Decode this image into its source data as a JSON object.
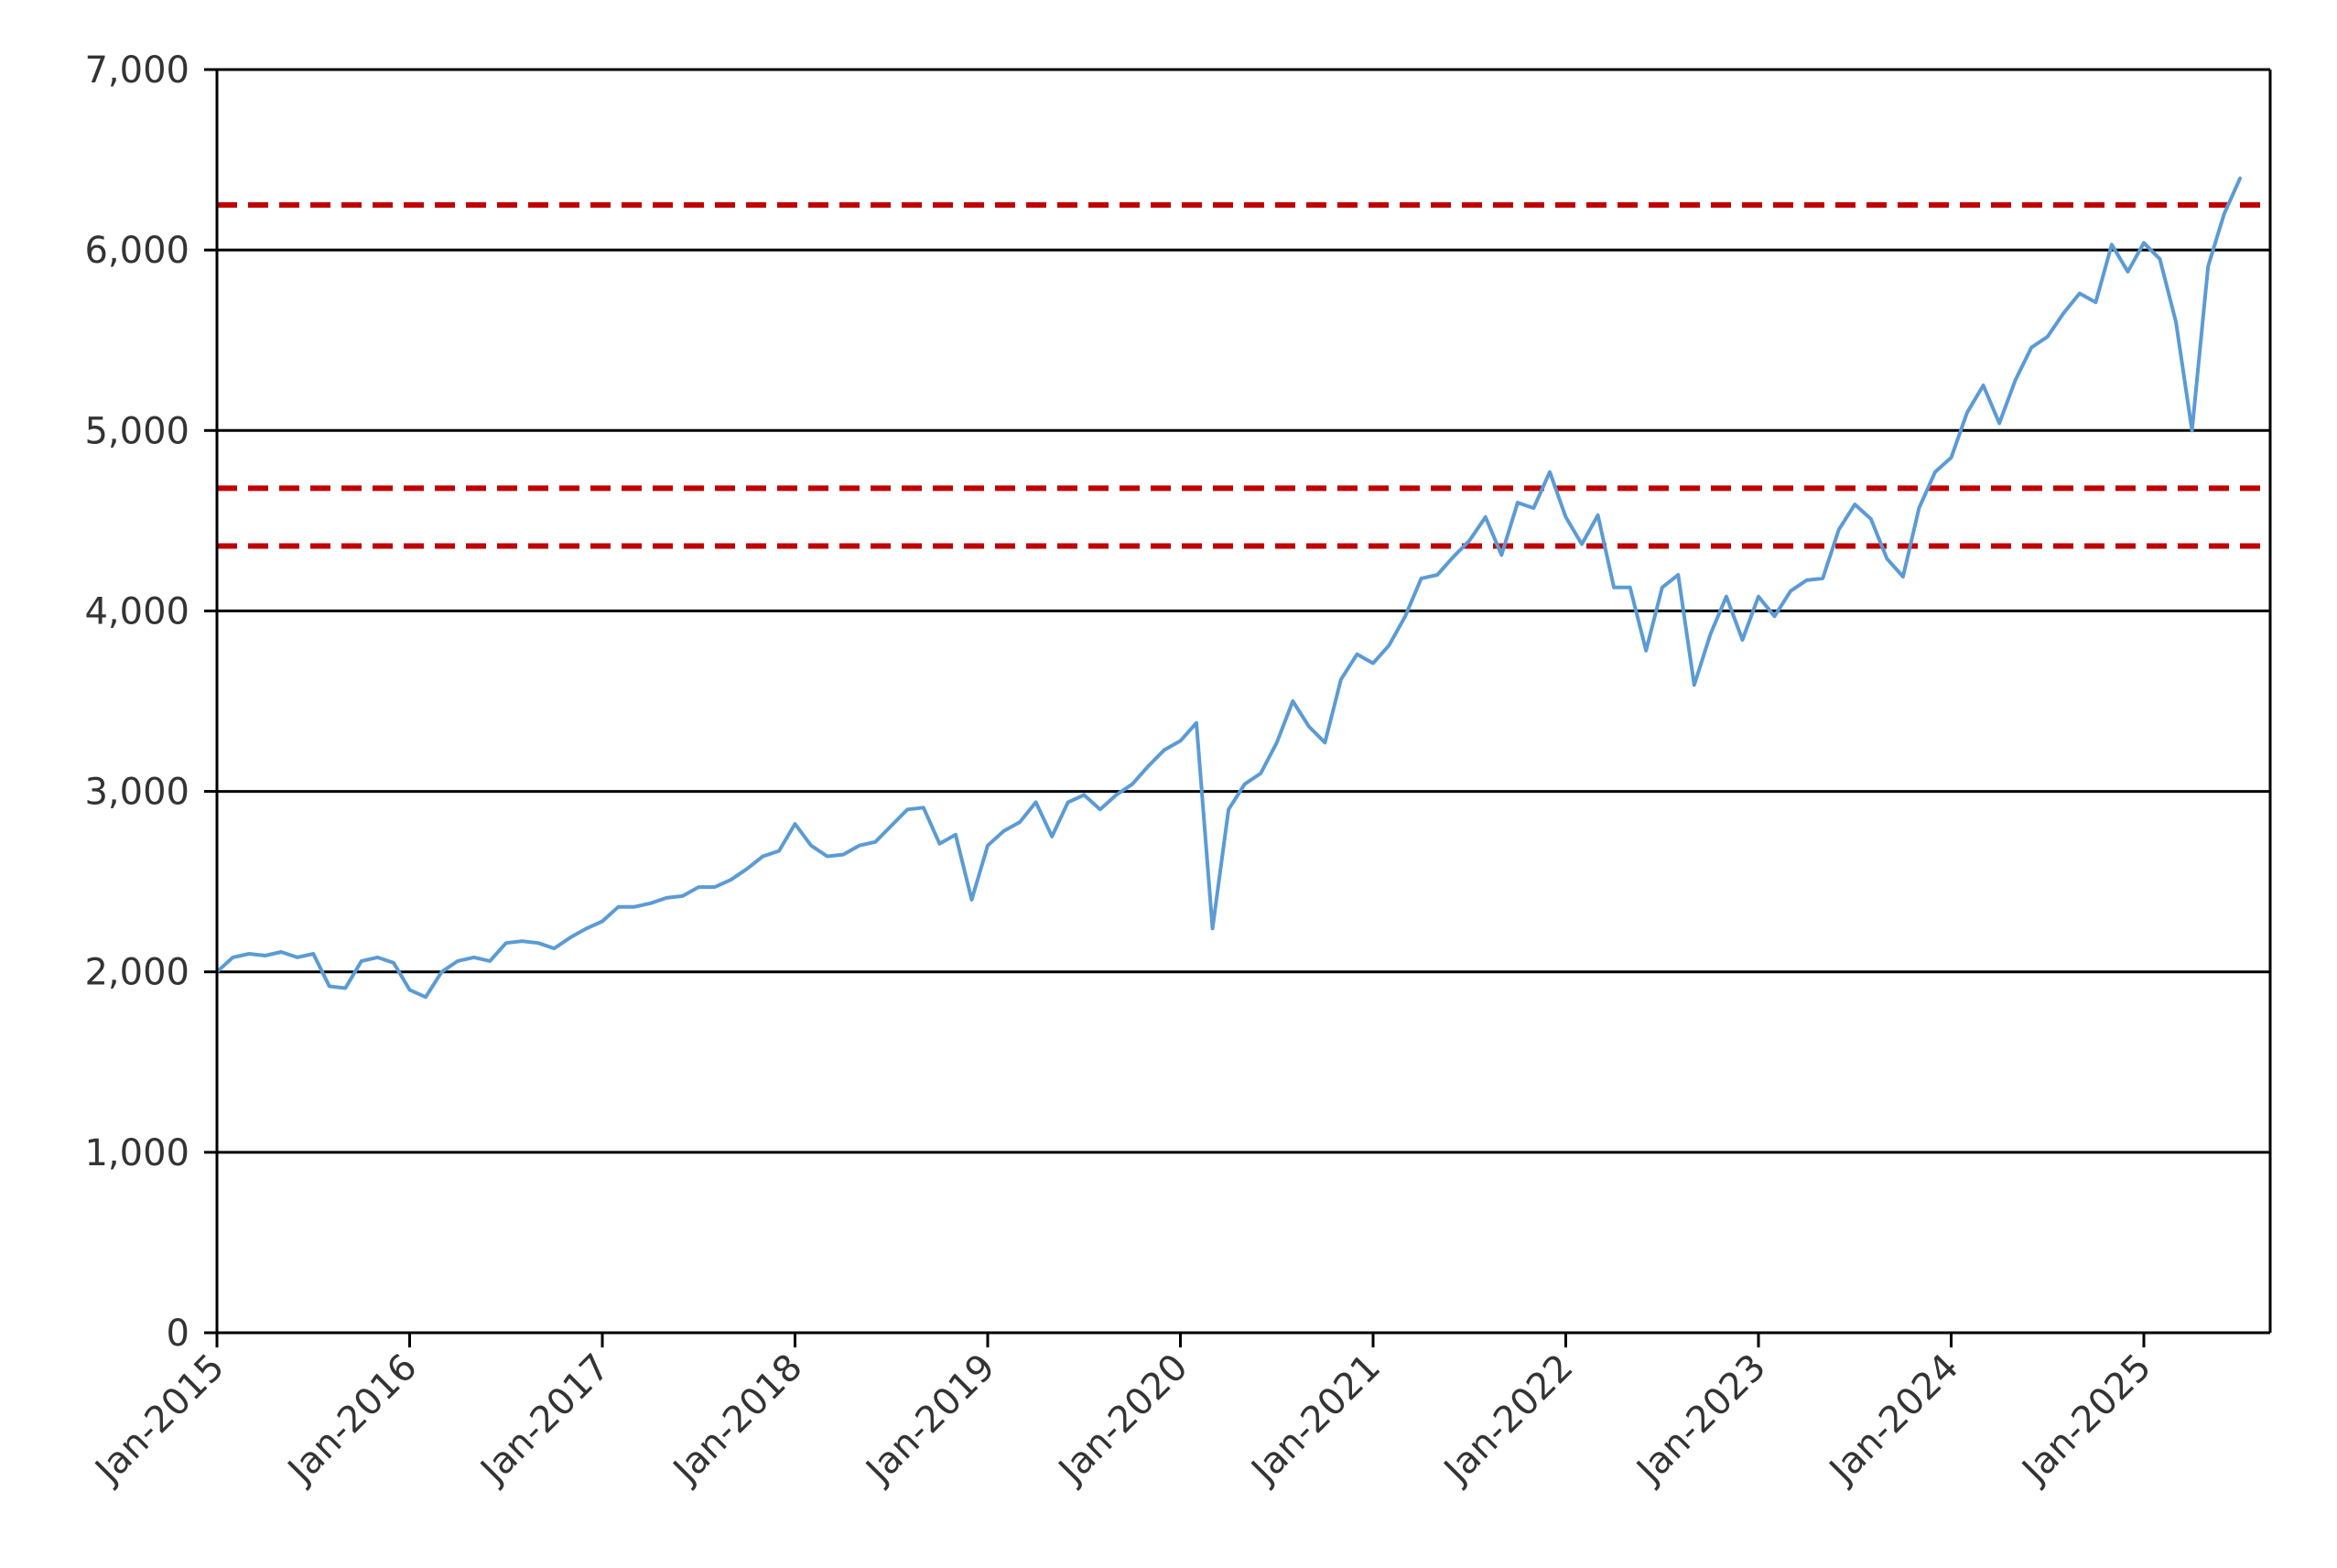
{
  "chart_data": {
    "type": "line",
    "title": "",
    "xlabel": "",
    "ylabel": "",
    "xlim": [
      "2015-01",
      "2025-07"
    ],
    "ylim": [
      0,
      7000
    ],
    "y_ticks": [
      {
        "value": 0,
        "label": "0"
      },
      {
        "value": 1000,
        "label": "1,000"
      },
      {
        "value": 2000,
        "label": "2,000"
      },
      {
        "value": 3000,
        "label": "3,000"
      },
      {
        "value": 4000,
        "label": "4,000"
      },
      {
        "value": 5000,
        "label": "5,000"
      },
      {
        "value": 6000,
        "label": "6,000"
      },
      {
        "value": 7000,
        "label": "7,000"
      }
    ],
    "x_ticks": [
      {
        "value": "2015-01",
        "label": "Jan-2015"
      },
      {
        "value": "2016-01",
        "label": "Jan-2016"
      },
      {
        "value": "2017-01",
        "label": "Jan-2017"
      },
      {
        "value": "2018-01",
        "label": "Jan-2018"
      },
      {
        "value": "2019-01",
        "label": "Jan-2019"
      },
      {
        "value": "2020-01",
        "label": "Jan-2020"
      },
      {
        "value": "2021-01",
        "label": "Jan-2021"
      },
      {
        "value": "2022-01",
        "label": "Jan-2022"
      },
      {
        "value": "2023-01",
        "label": "Jan-2023"
      },
      {
        "value": "2024-01",
        "label": "Jan-2024"
      },
      {
        "value": "2025-01",
        "label": "Jan-2025"
      }
    ],
    "grid": "horizontal",
    "legend": "none",
    "series": [
      {
        "color": "#5b9bd5",
        "points": [
          [
            "2015-01",
            2000
          ],
          [
            "2015-02",
            2080
          ],
          [
            "2015-03",
            2100
          ],
          [
            "2015-04",
            2090
          ],
          [
            "2015-05",
            2110
          ],
          [
            "2015-06",
            2080
          ],
          [
            "2015-07",
            2100
          ],
          [
            "2015-08",
            1920
          ],
          [
            "2015-09",
            1910
          ],
          [
            "2015-10",
            2060
          ],
          [
            "2015-11",
            2080
          ],
          [
            "2015-12",
            2050
          ],
          [
            "2016-01",
            1900
          ],
          [
            "2016-02",
            1860
          ],
          [
            "2016-03",
            2000
          ],
          [
            "2016-04",
            2060
          ],
          [
            "2016-05",
            2080
          ],
          [
            "2016-06",
            2060
          ],
          [
            "2016-07",
            2160
          ],
          [
            "2016-08",
            2170
          ],
          [
            "2016-09",
            2160
          ],
          [
            "2016-10",
            2130
          ],
          [
            "2016-11",
            2190
          ],
          [
            "2016-12",
            2240
          ],
          [
            "2017-01",
            2280
          ],
          [
            "2017-02",
            2360
          ],
          [
            "2017-03",
            2360
          ],
          [
            "2017-04",
            2380
          ],
          [
            "2017-05",
            2410
          ],
          [
            "2017-06",
            2420
          ],
          [
            "2017-07",
            2470
          ],
          [
            "2017-08",
            2470
          ],
          [
            "2017-09",
            2510
          ],
          [
            "2017-10",
            2570
          ],
          [
            "2017-11",
            2640
          ],
          [
            "2017-12",
            2670
          ],
          [
            "2018-01",
            2820
          ],
          [
            "2018-02",
            2700
          ],
          [
            "2018-03",
            2640
          ],
          [
            "2018-04",
            2650
          ],
          [
            "2018-05",
            2700
          ],
          [
            "2018-06",
            2720
          ],
          [
            "2018-07",
            2810
          ],
          [
            "2018-08",
            2900
          ],
          [
            "2018-09",
            2910
          ],
          [
            "2018-10",
            2710
          ],
          [
            "2018-11",
            2760
          ],
          [
            "2018-12",
            2400
          ],
          [
            "2019-01",
            2700
          ],
          [
            "2019-02",
            2780
          ],
          [
            "2019-03",
            2830
          ],
          [
            "2019-04",
            2940
          ],
          [
            "2019-05",
            2750
          ],
          [
            "2019-06",
            2940
          ],
          [
            "2019-07",
            2980
          ],
          [
            "2019-08",
            2900
          ],
          [
            "2019-09",
            2980
          ],
          [
            "2019-10",
            3040
          ],
          [
            "2019-11",
            3140
          ],
          [
            "2019-12",
            3230
          ],
          [
            "2020-01",
            3280
          ],
          [
            "2020-02",
            3380
          ],
          [
            "2020-03",
            2240
          ],
          [
            "2020-04",
            2900
          ],
          [
            "2020-05",
            3040
          ],
          [
            "2020-06",
            3100
          ],
          [
            "2020-07",
            3270
          ],
          [
            "2020-08",
            3500
          ],
          [
            "2020-09",
            3360
          ],
          [
            "2020-10",
            3270
          ],
          [
            "2020-11",
            3620
          ],
          [
            "2020-12",
            3760
          ],
          [
            "2021-01",
            3710
          ],
          [
            "2021-02",
            3810
          ],
          [
            "2021-03",
            3970
          ],
          [
            "2021-04",
            4180
          ],
          [
            "2021-05",
            4200
          ],
          [
            "2021-06",
            4300
          ],
          [
            "2021-07",
            4390
          ],
          [
            "2021-08",
            4520
          ],
          [
            "2021-09",
            4310
          ],
          [
            "2021-10",
            4600
          ],
          [
            "2021-11",
            4570
          ],
          [
            "2021-12",
            4770
          ],
          [
            "2022-01",
            4520
          ],
          [
            "2022-02",
            4370
          ],
          [
            "2022-03",
            4530
          ],
          [
            "2022-04",
            4130
          ],
          [
            "2022-05",
            4130
          ],
          [
            "2022-06",
            3780
          ],
          [
            "2022-07",
            4130
          ],
          [
            "2022-08",
            4200
          ],
          [
            "2022-09",
            3590
          ],
          [
            "2022-10",
            3870
          ],
          [
            "2022-11",
            4080
          ],
          [
            "2022-12",
            3840
          ],
          [
            "2023-01",
            4080
          ],
          [
            "2023-02",
            3970
          ],
          [
            "2023-03",
            4110
          ],
          [
            "2023-04",
            4170
          ],
          [
            "2023-05",
            4180
          ],
          [
            "2023-06",
            4450
          ],
          [
            "2023-07",
            4590
          ],
          [
            "2023-08",
            4510
          ],
          [
            "2023-09",
            4290
          ],
          [
            "2023-10",
            4190
          ],
          [
            "2023-11",
            4570
          ],
          [
            "2023-12",
            4770
          ],
          [
            "2024-01",
            4850
          ],
          [
            "2024-02",
            5100
          ],
          [
            "2024-03",
            5250
          ],
          [
            "2024-04",
            5040
          ],
          [
            "2024-05",
            5280
          ],
          [
            "2024-06",
            5460
          ],
          [
            "2024-07",
            5520
          ],
          [
            "2024-08",
            5650
          ],
          [
            "2024-09",
            5760
          ],
          [
            "2024-10",
            5710
          ],
          [
            "2024-11",
            6030
          ],
          [
            "2024-12",
            5880
          ],
          [
            "2025-01",
            6040
          ],
          [
            "2025-02",
            5950
          ],
          [
            "2025-03",
            5600
          ],
          [
            "2025-04",
            5000
          ],
          [
            "2025-05",
            5910
          ],
          [
            "2025-06",
            6200
          ],
          [
            "2025-07",
            6400
          ]
        ]
      }
    ],
    "reference_lines": [
      {
        "y": 6250,
        "color": "#c00000",
        "style": "dashed"
      },
      {
        "y": 4680,
        "color": "#c00000",
        "style": "dashed"
      },
      {
        "y": 4360,
        "color": "#c00000",
        "style": "dashed"
      }
    ]
  }
}
